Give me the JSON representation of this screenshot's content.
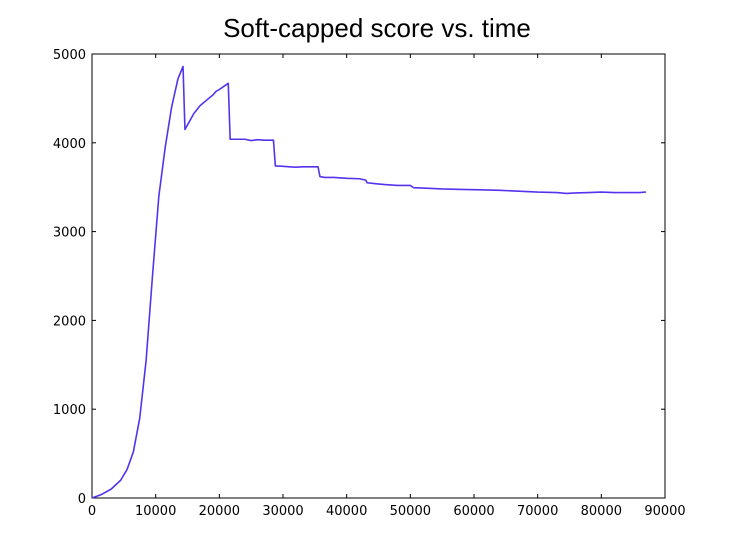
{
  "chart_data": {
    "type": "line",
    "title": "Soft-capped score vs. time",
    "xlabel": "",
    "ylabel": "",
    "xlim": [
      0,
      90000
    ],
    "ylim": [
      0,
      5000
    ],
    "x_ticks": [
      0,
      10000,
      20000,
      30000,
      40000,
      50000,
      60000,
      70000,
      80000,
      90000
    ],
    "y_ticks": [
      0,
      1000,
      2000,
      3000,
      4000,
      5000
    ],
    "x_tick_labels": [
      "0",
      "10000",
      "20000",
      "30000",
      "40000",
      "50000",
      "60000",
      "70000",
      "80000",
      "90000"
    ],
    "y_tick_labels": [
      "0",
      "1000",
      "2000",
      "3000",
      "4000",
      "5000"
    ],
    "grid": false,
    "legend": "none",
    "series": [
      {
        "color": "#5533ee",
        "x": [
          0,
          1500,
          3000,
          4500,
          5500,
          6500,
          7500,
          8500,
          9500,
          10500,
          11500,
          12500,
          13500,
          14300,
          14600,
          16000,
          17000,
          18000,
          19000,
          19500,
          20000,
          21000,
          21400,
          21700,
          24000,
          25000,
          26000,
          27000,
          28500,
          28800,
          30000,
          31000,
          32000,
          33000,
          34000,
          35500,
          35800,
          36500,
          38000,
          40000,
          42000,
          43000,
          43200,
          44500,
          46000,
          48000,
          50000,
          50500,
          52000,
          55000,
          58000,
          61000,
          64000,
          67000,
          70000,
          73000,
          74500,
          76000,
          78000,
          80000,
          82000,
          84000,
          86000,
          87000
        ],
        "y": [
          0,
          40,
          100,
          200,
          320,
          520,
          900,
          1550,
          2500,
          3400,
          3950,
          4400,
          4720,
          4860,
          4150,
          4330,
          4420,
          4480,
          4540,
          4580,
          4600,
          4650,
          4670,
          4040,
          4040,
          4025,
          4035,
          4030,
          4030,
          3740,
          3735,
          3730,
          3725,
          3730,
          3730,
          3730,
          3620,
          3610,
          3610,
          3600,
          3595,
          3580,
          3550,
          3540,
          3530,
          3520,
          3520,
          3495,
          3490,
          3480,
          3475,
          3470,
          3465,
          3455,
          3445,
          3440,
          3430,
          3435,
          3440,
          3445,
          3440,
          3440,
          3440,
          3445
        ]
      }
    ]
  }
}
